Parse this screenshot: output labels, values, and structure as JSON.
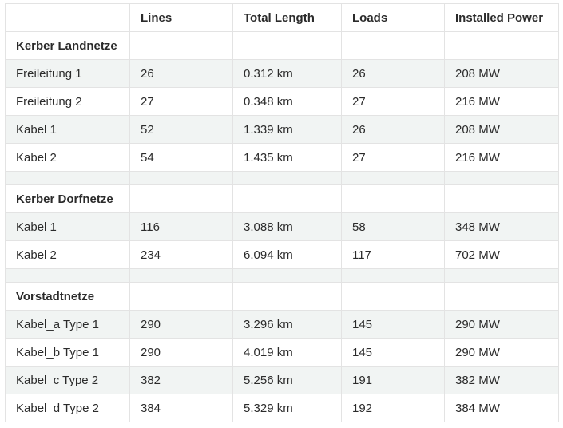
{
  "table": {
    "headers": [
      "",
      "Lines",
      "Total Length",
      "Loads",
      "Installed Power"
    ],
    "groups": [
      {
        "title": "Kerber Landnetze",
        "rows": [
          [
            "Freileitung 1",
            "26",
            "0.312 km",
            "26",
            "208 MW"
          ],
          [
            "Freileitung 2",
            "27",
            "0.348 km",
            "27",
            "216 MW"
          ],
          [
            "Kabel 1",
            "52",
            "1.339 km",
            "26",
            "208 MW"
          ],
          [
            "Kabel 2",
            "54",
            "1.435 km",
            "27",
            "216 MW"
          ]
        ]
      },
      {
        "title": "Kerber Dorfnetze",
        "rows": [
          [
            "Kabel 1",
            "116",
            "3.088 km",
            "58",
            "348 MW"
          ],
          [
            "Kabel 2",
            "234",
            "6.094 km",
            "117",
            "702 MW"
          ]
        ]
      },
      {
        "title": "Vorstadtnetze",
        "rows": [
          [
            "Kabel_a Type 1",
            "290",
            "3.296 km",
            "145",
            "290 MW"
          ],
          [
            "Kabel_b Type 1",
            "290",
            "4.019 km",
            "145",
            "290 MW"
          ],
          [
            "Kabel_c Type 2",
            "382",
            "5.256 km",
            "191",
            "382 MW"
          ],
          [
            "Kabel_d Type 2",
            "384",
            "5.329 km",
            "192",
            "384 MW"
          ]
        ]
      }
    ]
  }
}
